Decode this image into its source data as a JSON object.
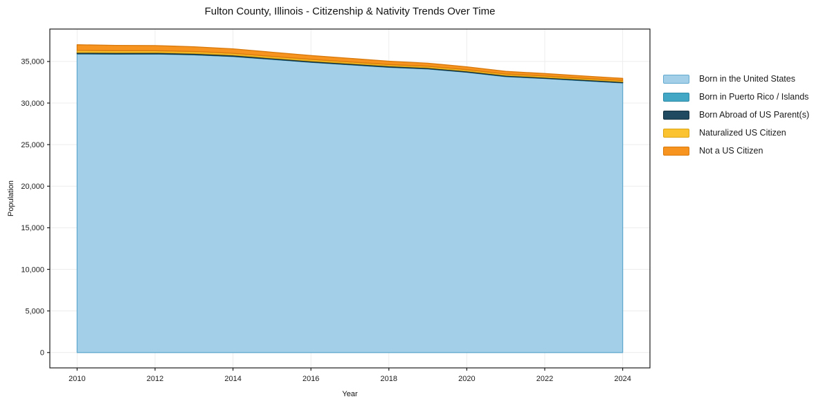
{
  "title": "Fulton County, Illinois - Citizenship & Nativity Trends Over Time",
  "xlabel": "Year",
  "ylabel": "Population",
  "colors": {
    "background": "#ffffff",
    "grid": "#ececec",
    "spine": "#1a1a1a",
    "tick_text": "#1a1a1a"
  },
  "chart_data": {
    "type": "area",
    "stacked": true,
    "title": "Fulton County, Illinois - Citizenship & Nativity Trends Over Time",
    "xlabel": "Year",
    "ylabel": "Population",
    "grid": true,
    "legend_position": "right",
    "x": [
      2010,
      2011,
      2012,
      2013,
      2014,
      2015,
      2016,
      2017,
      2018,
      2019,
      2020,
      2021,
      2022,
      2023,
      2024
    ],
    "series": [
      {
        "name": "Born in the United States",
        "color": "#a3d0e8",
        "edge": "#62a9cf",
        "values": [
          35900,
          35880,
          35900,
          35800,
          35600,
          35250,
          34900,
          34600,
          34300,
          34100,
          33700,
          33180,
          32950,
          32680,
          32420
        ]
      },
      {
        "name": "Born in Puerto Rico / Islands",
        "color": "#41a7c4",
        "edge": "#2d8aa6",
        "values": [
          40,
          40,
          35,
          35,
          35,
          30,
          30,
          30,
          30,
          30,
          30,
          30,
          30,
          30,
          30
        ]
      },
      {
        "name": "Born Abroad of US Parent(s)",
        "color": "#1f4a5f",
        "edge": "#142f3d",
        "values": [
          150,
          145,
          140,
          140,
          135,
          130,
          130,
          125,
          125,
          120,
          120,
          120,
          115,
          115,
          110
        ]
      },
      {
        "name": "Naturalized US Citizen",
        "color": "#fcc330",
        "edge": "#dba211",
        "values": [
          240,
          230,
          225,
          220,
          210,
          200,
          195,
          190,
          180,
          175,
          170,
          165,
          160,
          155,
          150
        ]
      },
      {
        "name": "Not a US Citizen",
        "color": "#f7941f",
        "edge": "#d8780b",
        "values": [
          680,
          640,
          610,
          580,
          540,
          500,
          460,
          430,
          400,
          370,
          340,
          315,
          295,
          275,
          260
        ]
      }
    ],
    "x_ticks": [
      2010,
      2012,
      2014,
      2016,
      2018,
      2020,
      2022,
      2024
    ],
    "x_tick_labels": [
      "2010",
      "2012",
      "2014",
      "2016",
      "2018",
      "2020",
      "2022",
      "2024"
    ],
    "y_ticks": [
      0,
      5000,
      10000,
      15000,
      20000,
      25000,
      30000,
      35000
    ],
    "y_tick_labels": [
      "0",
      "5,000",
      "10,000",
      "15,000",
      "20,000",
      "25,000",
      "30,000",
      "35,000"
    ],
    "xlim": [
      2009.3,
      2024.7
    ],
    "ylim": [
      -1850,
      38900
    ]
  }
}
